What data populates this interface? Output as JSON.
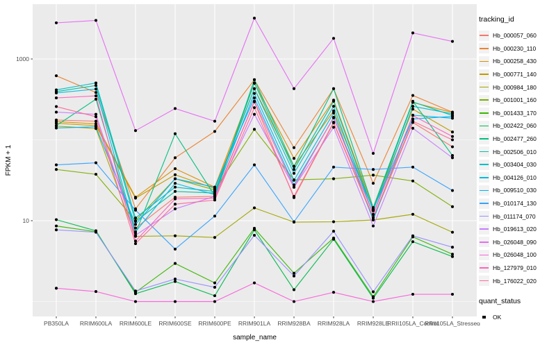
{
  "figure": {
    "y_axis_title": "FPKM + 1",
    "x_axis_title": "sample_name",
    "legend": {
      "tracking_title": "tracking_id",
      "quant_title": "quant_status",
      "quant_items": [
        {
          "label": "OK",
          "marker": "black-square"
        }
      ]
    },
    "colors": {
      "panel_bg": "#EBEBEB",
      "grid": "#FFFFFF",
      "axis_text": "#4D4D4D",
      "tick_mark": "#333333",
      "legend_key_bg": "#F2F2F2",
      "point": "#000000"
    }
  },
  "chart_data": {
    "type": "line",
    "title": "",
    "xlabel": "sample_name",
    "ylabel": "FPKM + 1",
    "y_scale": "log10",
    "y_tick_labels": [
      "10",
      "1000"
    ],
    "y_tick_values": [
      10,
      1000
    ],
    "y_minor_values": [
      1,
      100
    ],
    "ylim": [
      0.9,
      4000
    ],
    "grid": true,
    "legend_position": "right",
    "point_marker": "black-dot",
    "quant_status": "OK",
    "categories": [
      "PB350LA",
      "RRIM600LA",
      "RRIM600LE",
      "RRIM600SE",
      "RRIM600PE",
      "RRIM901LA",
      "RRIM928BA",
      "RRIM928LA",
      "RRIM928LE",
      "RRII105LA_Control",
      "RRII105LA_Stressed"
    ],
    "series": [
      {
        "name": "Hb_000057_060",
        "color": "#F8766D",
        "values": [
          176,
          170,
          8.1,
          19.5,
          20,
          295,
          19.3,
          162,
          10.5,
          164,
          82
        ]
      },
      {
        "name": "Hb_000230_110",
        "color": "#EA8331",
        "values": [
          620,
          385,
          14,
          60,
          127,
          553,
          80,
          428,
          29,
          354,
          220
        ]
      },
      {
        "name": "Hb_000258_430",
        "color": "#D89000",
        "values": [
          168,
          158,
          19.5,
          44,
          26,
          500,
          59,
          310,
          14.5,
          290,
          218
        ]
      },
      {
        "name": "Hb_000771_140",
        "color": "#C09B00",
        "values": [
          160,
          150,
          19,
          37,
          25,
          428,
          47,
          228,
          13.8,
          240,
          125
        ]
      },
      {
        "name": "Hb_000984_180",
        "color": "#A3A500",
        "values": [
          148,
          138,
          6.4,
          6.5,
          6.2,
          14.4,
          9.6,
          9.7,
          10.2,
          12,
          7.2
        ]
      },
      {
        "name": "Hb_001001_160",
        "color": "#7CAE00",
        "values": [
          43,
          37.5,
          10,
          33,
          24,
          135,
          32,
          33,
          36.6,
          31,
          14.9
        ]
      },
      {
        "name": "Hb_001433_170",
        "color": "#39B600",
        "values": [
          8.6,
          7.3,
          1.3,
          2.96,
          1.7,
          8.05,
          2.24,
          6.1,
          1.15,
          6.3,
          3.85
        ]
      },
      {
        "name": "Hb_002422_060",
        "color": "#00BB4E",
        "values": [
          10.3,
          7.5,
          1.25,
          1.77,
          1.18,
          7.7,
          1.4,
          5.9,
          1.1,
          5.5,
          3.6
        ]
      },
      {
        "name": "Hb_002477_260",
        "color": "#00BF7D",
        "values": [
          150,
          318,
          7.0,
          119,
          20.3,
          555,
          47,
          430,
          14.5,
          300,
          64
        ]
      },
      {
        "name": "Hb_002506_010",
        "color": "#00C1A3",
        "values": [
          395,
          470,
          9.8,
          23,
          22,
          505,
          43,
          300,
          13.3,
          295,
          200
        ]
      },
      {
        "name": "Hb_003404_030",
        "color": "#00BFC4",
        "values": [
          415,
          505,
          10.8,
          26,
          23,
          430,
          38.5,
          260,
          11.9,
          260,
          210
        ]
      },
      {
        "name": "Hb_004126_010",
        "color": "#00BAE0",
        "values": [
          380,
          425,
          7.3,
          29,
          21,
          375,
          31.6,
          215,
          10.2,
          202,
          185
        ]
      },
      {
        "name": "Hb_009510_030",
        "color": "#00B0F6",
        "values": [
          140,
          145,
          9,
          33,
          26,
          330,
          27.7,
          187,
          13.9,
          181,
          195
        ]
      },
      {
        "name": "Hb_010174_130",
        "color": "#35A2FF",
        "values": [
          49,
          52,
          13.5,
          4.45,
          11.4,
          49,
          9.7,
          46,
          43,
          46,
          23.6
        ]
      },
      {
        "name": "Hb_011174_070",
        "color": "#9590FF",
        "values": [
          7.7,
          7.2,
          1.35,
          1.9,
          1.5,
          6.6,
          2.07,
          7.4,
          1.32,
          6.5,
          4.7
        ]
      },
      {
        "name": "Hb_019613_020",
        "color": "#C77CFF",
        "values": [
          220,
          207,
          6.6,
          14,
          20,
          207,
          25.9,
          143,
          8.6,
          139,
          60
        ]
      },
      {
        "name": "Hb_026048_090",
        "color": "#E76BF3",
        "values": [
          2800,
          3000,
          130,
          244,
          170,
          3200,
          430,
          1800,
          68,
          2100,
          1650
        ]
      },
      {
        "name": "Hb_026048_100",
        "color": "#FA62DB",
        "values": [
          1.46,
          1.33,
          1.0,
          1.0,
          1.0,
          1.7,
          1.0,
          1.3,
          1.0,
          1.23,
          1.23
        ]
      },
      {
        "name": "Hb_127979_010",
        "color": "#FF62BC",
        "values": [
          330,
          350,
          5.6,
          18.6,
          19,
          300,
          26,
          190,
          12,
          200,
          110
        ]
      },
      {
        "name": "Hb_176022_020",
        "color": "#FF6A98",
        "values": [
          258,
          193,
          5.2,
          16,
          18,
          250,
          20,
          165,
          11,
          170,
          100
        ]
      }
    ]
  }
}
